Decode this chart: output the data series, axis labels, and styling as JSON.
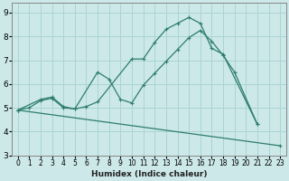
{
  "title": "",
  "xlabel": "Humidex (Indice chaleur)",
  "bg_color": "#cce8e8",
  "grid_color": "#aad4d4",
  "line_color": "#2e7d6e",
  "xlim": [
    -0.5,
    23.5
  ],
  "ylim": [
    3.0,
    9.4
  ],
  "xticks": [
    0,
    1,
    2,
    3,
    4,
    5,
    6,
    7,
    8,
    9,
    10,
    11,
    12,
    13,
    14,
    15,
    16,
    17,
    18,
    19,
    20,
    21,
    22,
    23
  ],
  "yticks": [
    3,
    4,
    5,
    6,
    7,
    8,
    9
  ],
  "line1_x": [
    0,
    1,
    2,
    3,
    4,
    5,
    6,
    7,
    10,
    11,
    12,
    13,
    14,
    15,
    16,
    17,
    18,
    21
  ],
  "line1_y": [
    4.9,
    5.0,
    5.3,
    5.4,
    5.0,
    4.95,
    5.05,
    5.25,
    7.05,
    7.05,
    7.75,
    8.3,
    8.55,
    8.8,
    8.55,
    7.5,
    7.25,
    4.3
  ],
  "line2_x": [
    0,
    2,
    3,
    4,
    5,
    7,
    8,
    9,
    10,
    11,
    12,
    13,
    14,
    15,
    16,
    17,
    18,
    19,
    21
  ],
  "line2_y": [
    4.9,
    5.35,
    5.45,
    5.05,
    4.95,
    6.5,
    6.2,
    5.35,
    5.2,
    5.95,
    6.45,
    6.95,
    7.45,
    7.95,
    8.25,
    7.8,
    7.2,
    6.5,
    4.3
  ],
  "line3_x": [
    0,
    23
  ],
  "line3_y": [
    4.9,
    3.4
  ]
}
